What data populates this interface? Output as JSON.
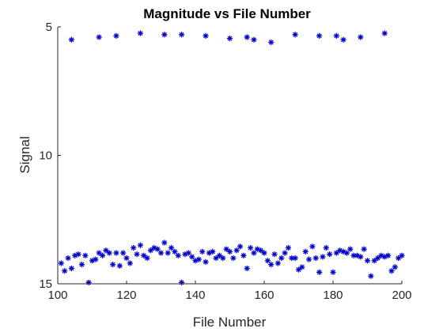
{
  "chart_data": {
    "type": "scatter",
    "title": "Magnitude vs File Number",
    "xlabel": "File Number",
    "ylabel": "Signal",
    "xlim": [
      100,
      200
    ],
    "ylim": [
      5,
      15
    ],
    "y_reversed": true,
    "grid": false,
    "marker": "*",
    "marker_color": "#0000cc",
    "xticks": [
      100,
      120,
      140,
      160,
      180,
      200
    ],
    "yticks": [
      5,
      10,
      15
    ],
    "series": [
      {
        "x": [
          104,
          112,
          117,
          124,
          131,
          136,
          143,
          150,
          155,
          157,
          162,
          169,
          176,
          181,
          183,
          188,
          195
        ],
        "y": [
          5.5,
          5.4,
          5.35,
          5.25,
          5.3,
          5.3,
          5.35,
          5.45,
          5.4,
          5.5,
          5.6,
          5.3,
          5.35,
          5.35,
          5.5,
          5.4,
          5.25
        ]
      },
      {
        "x": [
          101,
          102,
          103,
          104,
          105,
          106,
          107,
          108,
          109,
          110,
          111,
          112,
          113,
          114,
          115,
          116,
          117,
          118,
          119,
          120,
          121,
          122,
          123,
          124,
          125,
          126,
          127,
          128,
          129,
          130,
          131,
          132,
          133,
          134,
          135,
          136,
          137,
          138,
          139,
          140,
          141,
          142,
          143,
          144,
          145,
          146,
          147,
          148,
          149,
          150,
          151,
          152,
          153,
          154,
          155,
          156,
          157,
          158,
          159,
          160,
          161,
          162,
          163,
          164,
          165,
          166,
          167,
          168,
          169,
          170,
          171,
          172,
          173,
          174,
          175,
          176,
          177,
          178,
          179,
          180,
          181,
          182,
          183,
          184,
          185,
          186,
          187,
          188,
          189,
          190,
          191,
          192,
          193,
          194,
          195,
          196,
          197,
          198,
          199,
          200
        ],
        "y": [
          14.2,
          14.5,
          14.0,
          14.4,
          13.9,
          13.85,
          14.25,
          13.9,
          14.95,
          14.1,
          14.05,
          13.8,
          13.9,
          13.7,
          13.8,
          14.25,
          13.8,
          14.3,
          13.8,
          14.0,
          14.2,
          13.6,
          13.85,
          13.5,
          13.9,
          14.0,
          13.7,
          13.6,
          13.65,
          13.8,
          13.4,
          13.8,
          13.6,
          13.75,
          13.9,
          14.95,
          13.85,
          13.8,
          13.95,
          14.1,
          14.05,
          13.75,
          14.15,
          13.8,
          13.75,
          14.0,
          13.9,
          14.0,
          13.65,
          13.75,
          14.0,
          13.7,
          13.55,
          13.9,
          14.4,
          13.6,
          13.8,
          13.65,
          13.7,
          13.8,
          14.1,
          14.25,
          13.85,
          14.2,
          14.0,
          13.8,
          13.6,
          14.0,
          14.0,
          14.45,
          14.35,
          13.75,
          14.05,
          13.55,
          14.0,
          14.55,
          13.95,
          13.6,
          13.85,
          14.55,
          13.8,
          13.7,
          13.75,
          13.8,
          13.65,
          13.9,
          13.9,
          13.95,
          13.65,
          14.1,
          14.7,
          14.1,
          14.0,
          13.9,
          13.95,
          13.9,
          14.5,
          14.35,
          14.0,
          13.9
        ]
      }
    ]
  }
}
